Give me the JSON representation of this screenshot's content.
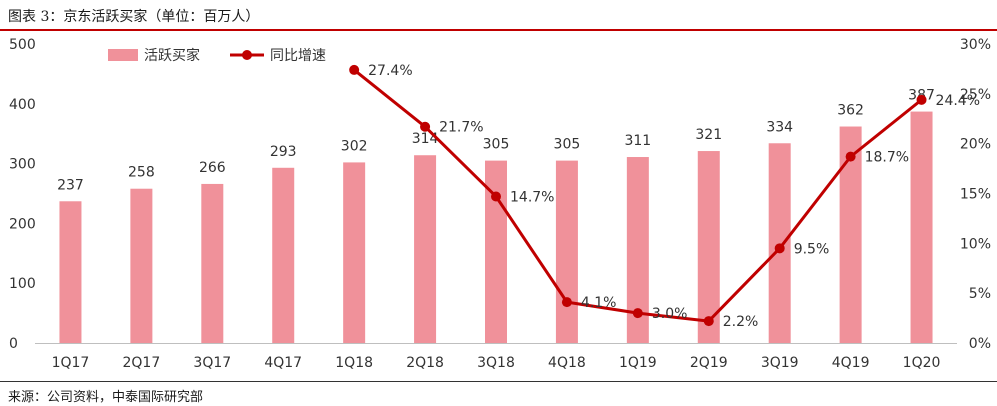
{
  "header": {
    "title": "图表 3：京东活跃买家（单位：百万人）"
  },
  "footer": {
    "source": "来源：公司资料，中泰国际研究部"
  },
  "chart_data": {
    "type": "bar",
    "categories": [
      "1Q17",
      "2Q17",
      "3Q17",
      "4Q17",
      "1Q18",
      "2Q18",
      "3Q18",
      "4Q18",
      "1Q19",
      "2Q19",
      "3Q19",
      "4Q19",
      "1Q20"
    ],
    "series": [
      {
        "name": "活跃买家",
        "type": "bar",
        "axis": "left",
        "color": "#f0919a",
        "values": [
          237,
          258,
          266,
          293,
          302,
          314,
          305,
          305,
          311,
          321,
          334,
          362,
          387
        ],
        "labels": [
          "237",
          "258",
          "266",
          "293",
          "302",
          "314",
          "305",
          "305",
          "311",
          "321",
          "334",
          "362",
          "387"
        ]
      },
      {
        "name": "同比增速",
        "type": "line",
        "axis": "right",
        "color": "#c00000",
        "values": [
          null,
          null,
          null,
          null,
          27.4,
          21.7,
          14.7,
          4.1,
          3.0,
          2.2,
          9.5,
          18.7,
          24.4
        ],
        "labels": [
          null,
          null,
          null,
          null,
          "27.4%",
          "21.7%",
          "14.7%",
          "4.1%",
          "3.0%",
          "2.2%",
          "9.5%",
          "18.7%",
          "24.4%"
        ]
      }
    ],
    "y_left": {
      "min": 0,
      "max": 500,
      "ticks": [
        "0",
        "100",
        "200",
        "300",
        "400",
        "500"
      ]
    },
    "y_right": {
      "min": 0,
      "max": 30,
      "ticks": [
        "0%",
        "5%",
        "10%",
        "15%",
        "20%",
        "25%",
        "30%"
      ]
    },
    "grid": false,
    "legend": "top-left"
  }
}
